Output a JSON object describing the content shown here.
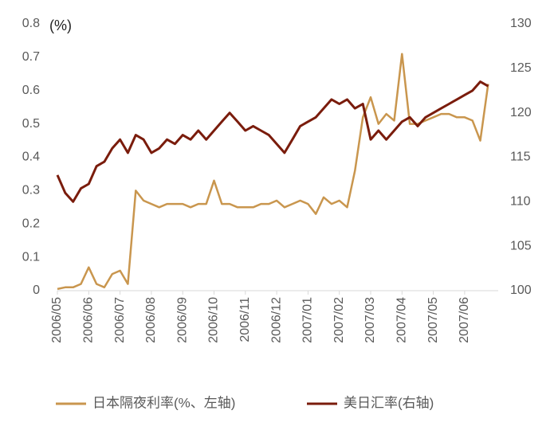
{
  "chart_data": {
    "type": "line",
    "y_label": "(%)",
    "categories": [
      "2006/05",
      null,
      null,
      null,
      "2006/06",
      null,
      null,
      null,
      "2006/07",
      null,
      null,
      null,
      "2006/08",
      null,
      null,
      null,
      "2006/09",
      null,
      null,
      null,
      "2006/10",
      null,
      null,
      null,
      "2006/11",
      null,
      null,
      null,
      "2006/12",
      null,
      null,
      null,
      "2007/01",
      null,
      null,
      null,
      "2007/02",
      null,
      null,
      null,
      "2007/03",
      null,
      null,
      null,
      "2007/04",
      null,
      null,
      null,
      "2007/05",
      null,
      null,
      null,
      "2007/06",
      null,
      null,
      null
    ],
    "series": [
      {
        "name": "日本隔夜利率(%、左轴)",
        "color": "#c9964e",
        "axis": "y",
        "values": [
          0.005,
          0.01,
          0.01,
          0.02,
          0.07,
          0.02,
          0.01,
          0.05,
          0.06,
          0.02,
          0.3,
          0.27,
          0.26,
          0.25,
          0.26,
          0.26,
          0.26,
          0.25,
          0.26,
          0.26,
          0.33,
          0.26,
          0.26,
          0.25,
          0.25,
          0.25,
          0.26,
          0.26,
          0.27,
          0.25,
          0.26,
          0.27,
          0.26,
          0.23,
          0.28,
          0.26,
          0.27,
          0.25,
          0.36,
          0.52,
          0.58,
          0.5,
          0.53,
          0.51,
          0.71,
          0.5,
          0.5,
          0.51,
          0.52,
          0.53,
          0.53,
          0.52,
          0.52,
          0.51,
          0.45,
          0.62
        ]
      },
      {
        "name": "美日汇率(右轴)",
        "color": "#7a1c0c",
        "axis": "y2",
        "values": [
          113,
          111,
          110,
          111.5,
          112,
          114,
          114.5,
          116,
          117,
          115.5,
          117.5,
          117,
          115.5,
          116,
          117,
          116.5,
          117.5,
          117,
          118,
          117,
          118,
          119,
          120,
          119,
          118,
          118.5,
          118,
          117.5,
          116.5,
          115.5,
          117,
          118.5,
          119,
          119.5,
          120.5,
          121.5,
          121,
          121.5,
          120.5,
          121,
          117,
          118,
          117,
          118,
          119,
          119.5,
          118.5,
          119.5,
          120,
          120.5,
          121,
          121.5,
          122,
          122.5,
          123.5,
          123
        ]
      }
    ],
    "ylim": [
      0,
      0.8
    ],
    "yticks": [
      0,
      0.1,
      0.2,
      0.3,
      0.4,
      0.5,
      0.6,
      0.7,
      0.8
    ],
    "y2lim": [
      100,
      130
    ],
    "y2ticks": [
      100,
      105,
      110,
      115,
      120,
      125,
      130
    ],
    "legend": "bottom"
  }
}
